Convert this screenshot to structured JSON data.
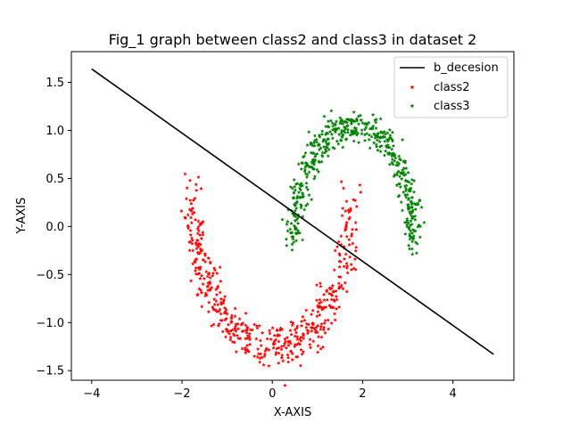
{
  "chart_data": {
    "type": "scatter",
    "title": "Fig_1 graph between class2 and class3 in dataset 2",
    "xlabel": "X-AXIS",
    "ylabel": "Y-AXIS",
    "xlim": [
      -4.45,
      5.35
    ],
    "ylim": [
      -1.6,
      1.82
    ],
    "xticks": [
      -4,
      -2,
      0,
      2,
      4
    ],
    "xtick_labels": [
      "−4",
      "−2",
      "0",
      "2",
      "4"
    ],
    "yticks": [
      -1.5,
      -1.0,
      -0.5,
      0.0,
      0.5,
      1.0,
      1.5
    ],
    "ytick_labels": [
      "−1.5",
      "−1.0",
      "−0.5",
      "0.0",
      "0.5",
      "1.0",
      "1.5"
    ],
    "grid": false,
    "legend_position": "top-right",
    "colors": {
      "line": "#000000",
      "class2": "#ff0000",
      "class3": "#008000"
    },
    "series": [
      {
        "name": "b_decesion",
        "kind": "line",
        "x": [
          -4.0,
          4.9
        ],
        "y": [
          1.64,
          -1.33
        ]
      },
      {
        "name": "class2",
        "kind": "scatter",
        "shape": "lower half-moon",
        "arc": {
          "cx": 0.0,
          "cy": 0.3,
          "rx": 1.75,
          "ry": 1.55,
          "t_from_deg": 180,
          "t_to_deg": 360
        },
        "noise": 0.12,
        "count": 500
      },
      {
        "name": "class3",
        "kind": "scatter",
        "shape": "upper half-moon",
        "arc": {
          "cx": 1.8,
          "cy": -0.2,
          "rx": 1.35,
          "ry": 1.25,
          "t_from_deg": 0,
          "t_to_deg": 180
        },
        "noise": 0.09,
        "count": 500
      }
    ]
  }
}
